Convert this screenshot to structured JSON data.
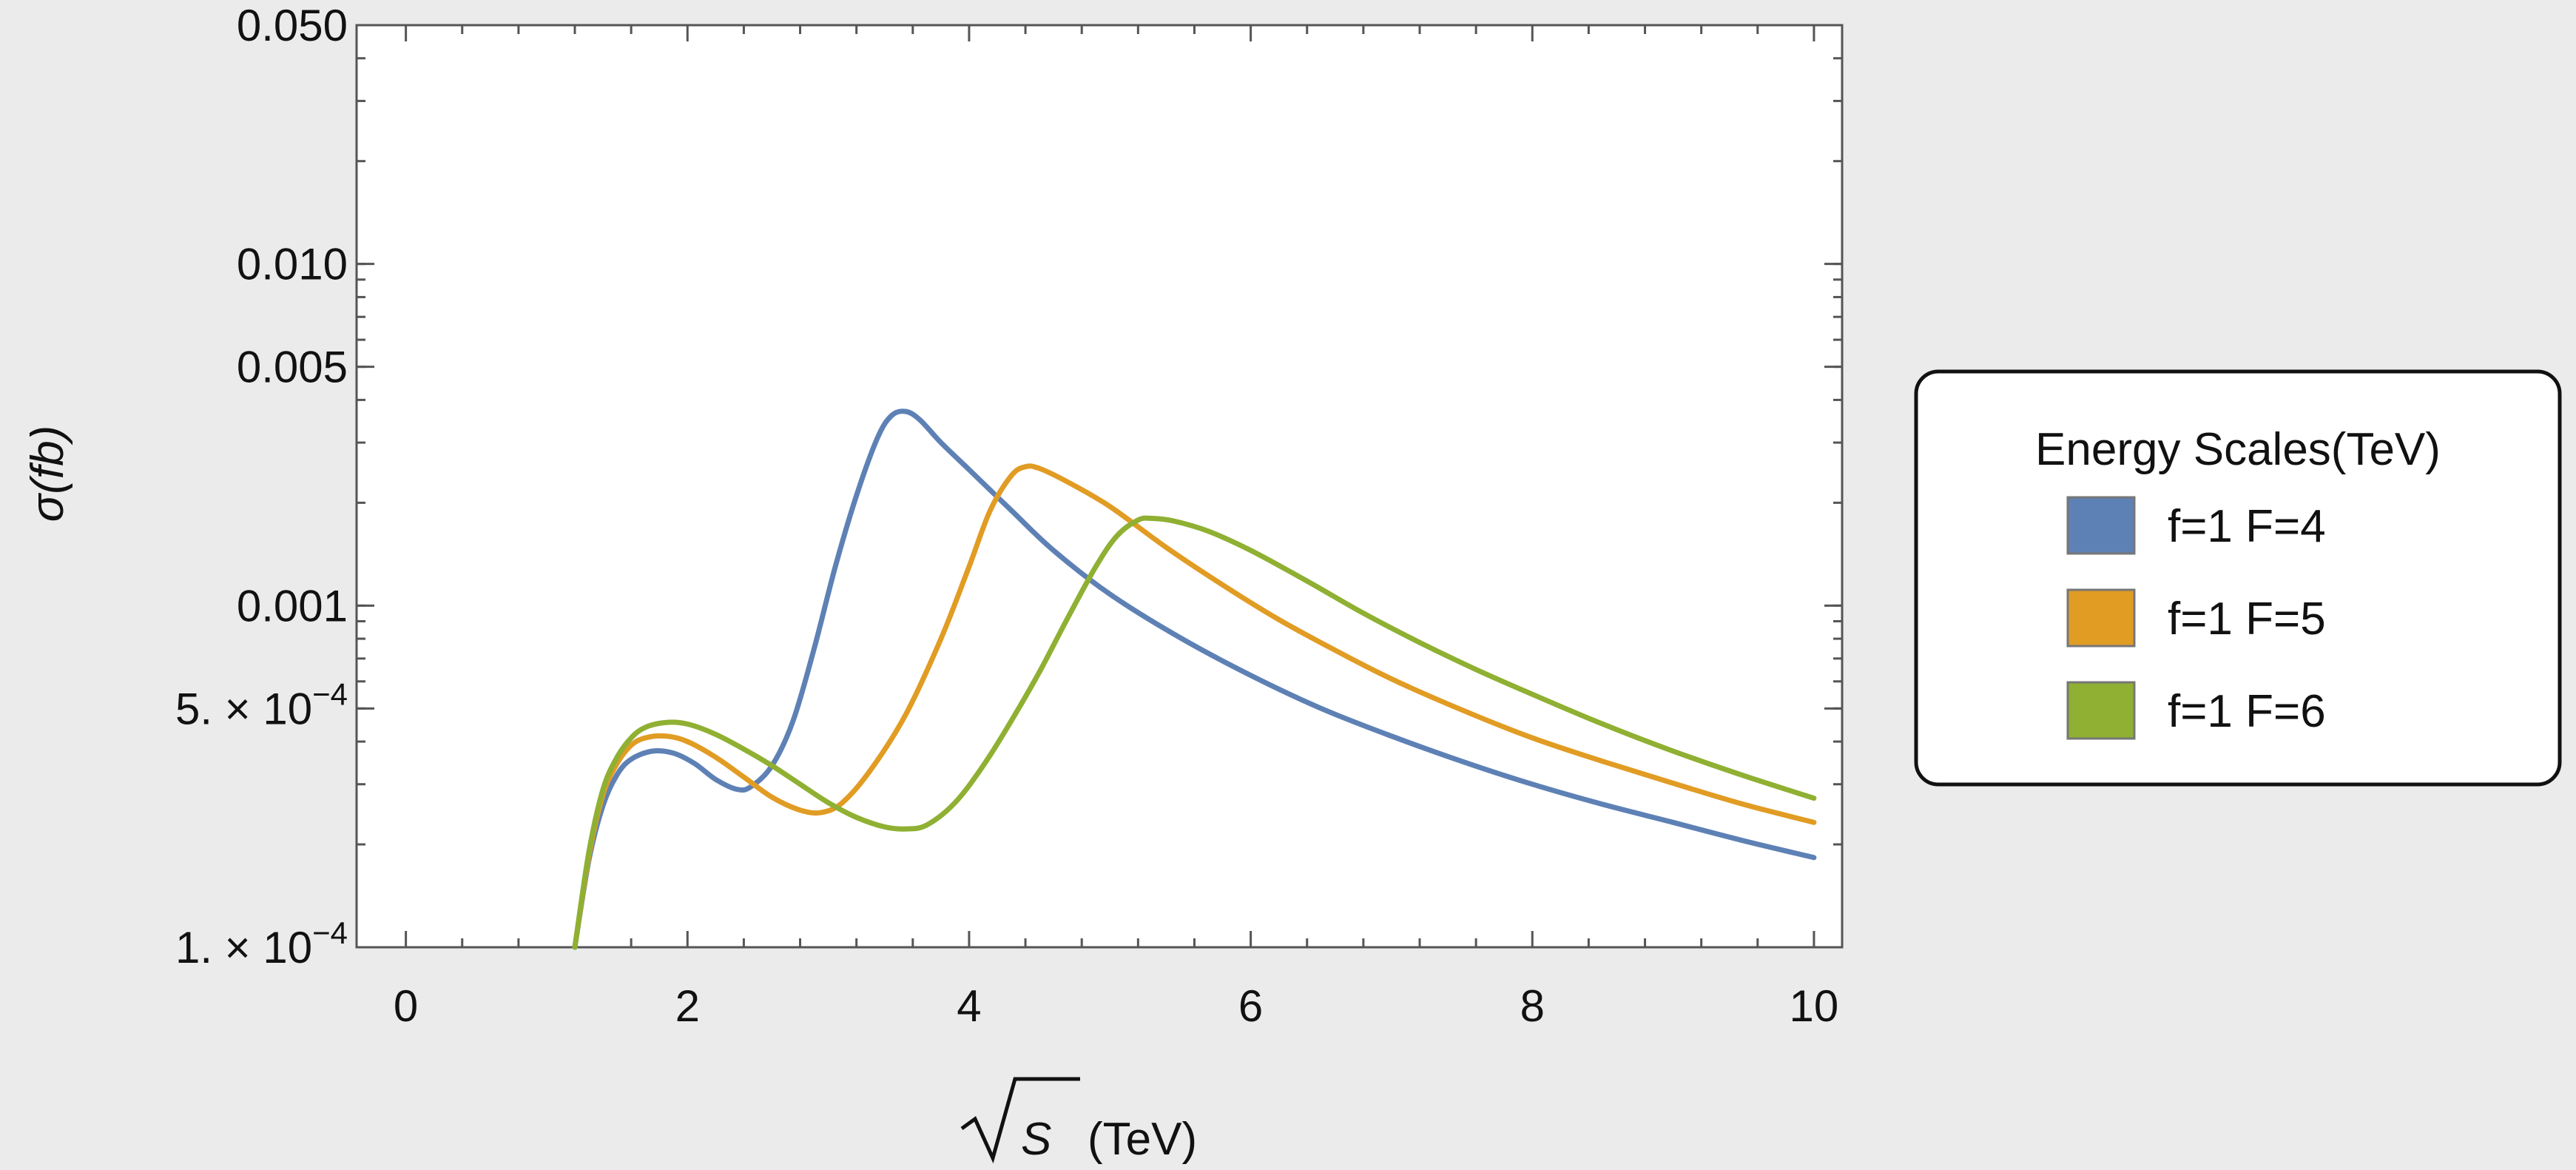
{
  "chart_data": {
    "type": "line",
    "xlabel": "(TeV)",
    "xlabel_symbol": "S",
    "ylabel": "σ(fb)",
    "xlim": [
      -0.35,
      10.2
    ],
    "ylim": [
      0.0001,
      0.05
    ],
    "yscale": "log",
    "grid": false,
    "legend_placement": "right",
    "legend_title": "Energy Scales(TeV)",
    "x_ticks": [
      {
        "value": 0,
        "label": "0"
      },
      {
        "value": 2,
        "label": "2"
      },
      {
        "value": 4,
        "label": "4"
      },
      {
        "value": 6,
        "label": "6"
      },
      {
        "value": 8,
        "label": "8"
      },
      {
        "value": 10,
        "label": "10"
      }
    ],
    "y_ticks": [
      {
        "value": 0.05,
        "label": "0.050",
        "mant": "",
        "exp": ""
      },
      {
        "value": 0.01,
        "label": "0.010",
        "mant": "",
        "exp": ""
      },
      {
        "value": 0.005,
        "label": "0.005",
        "mant": "",
        "exp": ""
      },
      {
        "value": 0.001,
        "label": "0.001",
        "mant": "",
        "exp": ""
      },
      {
        "value": 0.0005,
        "label": "",
        "mant": "5. × 10",
        "exp": "−4"
      },
      {
        "value": 0.0001,
        "label": "",
        "mant": "1. × 10",
        "exp": "−4"
      }
    ],
    "series": [
      {
        "name": "f=1 F=4",
        "color": "#5e81b5",
        "points": [
          [
            1.2,
            0.0001
          ],
          [
            1.3,
            0.00018
          ],
          [
            1.4,
            0.00026
          ],
          [
            1.5,
            0.00032
          ],
          [
            1.6,
            0.000355
          ],
          [
            1.75,
            0.000375
          ],
          [
            1.9,
            0.00037
          ],
          [
            2.05,
            0.000345
          ],
          [
            2.2,
            0.00031
          ],
          [
            2.35,
            0.00029
          ],
          [
            2.45,
            0.000295
          ],
          [
            2.6,
            0.00034
          ],
          [
            2.75,
            0.00046
          ],
          [
            2.9,
            0.00075
          ],
          [
            3.05,
            0.0013
          ],
          [
            3.2,
            0.0021
          ],
          [
            3.35,
            0.0031
          ],
          [
            3.45,
            0.0036
          ],
          [
            3.55,
            0.0037
          ],
          [
            3.65,
            0.0035
          ],
          [
            3.8,
            0.003
          ],
          [
            4.0,
            0.0025
          ],
          [
            4.3,
            0.0019
          ],
          [
            4.6,
            0.00145
          ],
          [
            5.0,
            0.00108
          ],
          [
            5.5,
            0.000805
          ],
          [
            6.0,
            0.000625
          ],
          [
            6.5,
            0.0005
          ],
          [
            7.0,
            0.000415
          ],
          [
            7.5,
            0.00035
          ],
          [
            8.0,
            0.0003
          ],
          [
            8.5,
            0.000262
          ],
          [
            9.0,
            0.000232
          ],
          [
            9.5,
            0.000205
          ],
          [
            10.0,
            0.000183
          ]
        ]
      },
      {
        "name": "f=1 F=5",
        "color": "#e19c24",
        "points": [
          [
            1.2,
            0.0001
          ],
          [
            1.3,
            0.000185
          ],
          [
            1.4,
            0.00028
          ],
          [
            1.5,
            0.000345
          ],
          [
            1.6,
            0.00039
          ],
          [
            1.7,
            0.00041
          ],
          [
            1.85,
            0.000415
          ],
          [
            2.0,
            0.0004
          ],
          [
            2.2,
            0.00036
          ],
          [
            2.4,
            0.000315
          ],
          [
            2.6,
            0.000275
          ],
          [
            2.8,
            0.000252
          ],
          [
            2.95,
            0.000248
          ],
          [
            3.1,
            0.000265
          ],
          [
            3.3,
            0.00033
          ],
          [
            3.55,
            0.00048
          ],
          [
            3.8,
            0.0008
          ],
          [
            4.0,
            0.0013
          ],
          [
            4.15,
            0.0019
          ],
          [
            4.3,
            0.0024
          ],
          [
            4.4,
            0.00255
          ],
          [
            4.5,
            0.00252
          ],
          [
            4.7,
            0.0023
          ],
          [
            5.0,
            0.00195
          ],
          [
            5.4,
            0.00148
          ],
          [
            5.8,
            0.00115
          ],
          [
            6.2,
            0.00091
          ],
          [
            6.6,
            0.00074
          ],
          [
            7.0,
            0.00061
          ],
          [
            7.5,
            0.000495
          ],
          [
            8.0,
            0.00041
          ],
          [
            8.5,
            0.00035
          ],
          [
            9.0,
            0.000302
          ],
          [
            9.5,
            0.000262
          ],
          [
            10.0,
            0.000232
          ]
        ]
      },
      {
        "name": "f=1 F=6",
        "color": "#8fb032",
        "points": [
          [
            1.2,
            0.0001
          ],
          [
            1.3,
            0.00019
          ],
          [
            1.4,
            0.00029
          ],
          [
            1.5,
            0.00036
          ],
          [
            1.6,
            0.00041
          ],
          [
            1.7,
            0.00044
          ],
          [
            1.85,
            0.000455
          ],
          [
            2.0,
            0.00045
          ],
          [
            2.2,
            0.00042
          ],
          [
            2.4,
            0.00038
          ],
          [
            2.6,
            0.00034
          ],
          [
            2.8,
            0.0003
          ],
          [
            3.0,
            0.000265
          ],
          [
            3.2,
            0.00024
          ],
          [
            3.4,
            0.000225
          ],
          [
            3.55,
            0.000222
          ],
          [
            3.7,
            0.000228
          ],
          [
            3.9,
            0.000265
          ],
          [
            4.1,
            0.00034
          ],
          [
            4.3,
            0.00046
          ],
          [
            4.5,
            0.00064
          ],
          [
            4.7,
            0.00092
          ],
          [
            4.9,
            0.0013
          ],
          [
            5.05,
            0.0016
          ],
          [
            5.2,
            0.00178
          ],
          [
            5.3,
            0.0018
          ],
          [
            5.45,
            0.00177
          ],
          [
            5.7,
            0.00165
          ],
          [
            6.0,
            0.00145
          ],
          [
            6.4,
            0.00118
          ],
          [
            6.8,
            0.00095
          ],
          [
            7.2,
            0.00078
          ],
          [
            7.6,
            0.00065
          ],
          [
            8.0,
            0.00055
          ],
          [
            8.5,
            0.00045
          ],
          [
            9.0,
            0.000375
          ],
          [
            9.5,
            0.000318
          ],
          [
            10.0,
            0.000273
          ]
        ]
      }
    ]
  }
}
